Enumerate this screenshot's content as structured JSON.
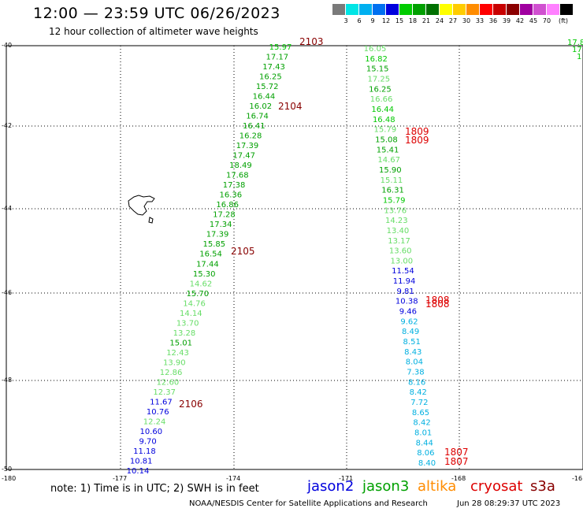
{
  "header": {
    "title": "12:00 — 23:59 UTC 06/26/2023",
    "subtitle": "12 hour collection of altimeter wave heights"
  },
  "legend": {
    "unit": "(ft)",
    "items": [
      {
        "label": "",
        "color": "#7a7a7a"
      },
      {
        "label": "3",
        "color": "#00e5e5"
      },
      {
        "label": "6",
        "color": "#00b0f0"
      },
      {
        "label": "9",
        "color": "#0070f0"
      },
      {
        "label": "12",
        "color": "#0000dd"
      },
      {
        "label": "15",
        "color": "#00cc00"
      },
      {
        "label": "18",
        "color": "#00a000"
      },
      {
        "label": "21",
        "color": "#007000"
      },
      {
        "label": "24",
        "color": "#ffff00"
      },
      {
        "label": "27",
        "color": "#ffcc00"
      },
      {
        "label": "30",
        "color": "#ff8c00"
      },
      {
        "label": "33",
        "color": "#ff0000"
      },
      {
        "label": "36",
        "color": "#c80000"
      },
      {
        "label": "39",
        "color": "#8b0000"
      },
      {
        "label": "42",
        "color": "#a000a0"
      },
      {
        "label": "45",
        "color": "#d050d0"
      },
      {
        "label": "70",
        "color": "#ff80ff"
      },
      {
        "label": "",
        "color": "#000000"
      }
    ]
  },
  "map": {
    "lat_labels": [
      "-40",
      "-42",
      "-44",
      "-46",
      "-48",
      "-50"
    ],
    "lon_labels": [
      "-180",
      "-177",
      "-174",
      "-171",
      "-168",
      "-16"
    ],
    "colors": {
      "dark_green": "#00a000",
      "green": "#00c800",
      "light_green": "#66dd66",
      "blue": "#0000dd",
      "cyan": "#00b0e0",
      "time_dark_red": "#880000",
      "time_red": "#dd0000"
    },
    "track_left": [
      {
        "v": "15.97",
        "c": "green"
      },
      {
        "v": "17.17",
        "c": "dark_green"
      },
      {
        "v": "17.43",
        "c": "dark_green"
      },
      {
        "v": "16.25",
        "c": "dark_green"
      },
      {
        "v": "15.72",
        "c": "dark_green"
      },
      {
        "v": "16.44",
        "c": "dark_green"
      },
      {
        "v": "16.02",
        "c": "dark_green"
      },
      {
        "v": "16.74",
        "c": "dark_green"
      },
      {
        "v": "16.41",
        "c": "dark_green"
      },
      {
        "v": "16.28",
        "c": "dark_green"
      },
      {
        "v": "17.39",
        "c": "dark_green"
      },
      {
        "v": "17.47",
        "c": "dark_green"
      },
      {
        "v": "18.49",
        "c": "dark_green"
      },
      {
        "v": "17.68",
        "c": "dark_green"
      },
      {
        "v": "17.38",
        "c": "dark_green"
      },
      {
        "v": "16.36",
        "c": "dark_green"
      },
      {
        "v": "16.86",
        "c": "dark_green"
      },
      {
        "v": "17.28",
        "c": "dark_green"
      },
      {
        "v": "17.34",
        "c": "dark_green"
      },
      {
        "v": "17.39",
        "c": "dark_green"
      },
      {
        "v": "15.85",
        "c": "dark_green"
      },
      {
        "v": "16.54",
        "c": "dark_green"
      },
      {
        "v": "17.44",
        "c": "dark_green"
      },
      {
        "v": "15.30",
        "c": "dark_green"
      },
      {
        "v": "14.62",
        "c": "light_green"
      },
      {
        "v": "15.70",
        "c": "dark_green"
      },
      {
        "v": "14.76",
        "c": "light_green"
      },
      {
        "v": "14.14",
        "c": "light_green"
      },
      {
        "v": "13.70",
        "c": "light_green"
      },
      {
        "v": "13.28",
        "c": "light_green"
      },
      {
        "v": "15.01",
        "c": "dark_green"
      },
      {
        "v": "12.43",
        "c": "light_green"
      },
      {
        "v": "13.90",
        "c": "light_green"
      },
      {
        "v": "12.86",
        "c": "light_green"
      },
      {
        "v": "12.60",
        "c": "light_green"
      },
      {
        "v": "12.37",
        "c": "light_green"
      },
      {
        "v": "11.67",
        "c": "blue"
      },
      {
        "v": "10.76",
        "c": "blue"
      },
      {
        "v": "12.24",
        "c": "light_green"
      },
      {
        "v": "10.60",
        "c": "blue"
      },
      {
        "v": "9.70",
        "c": "blue"
      },
      {
        "v": "11.18",
        "c": "blue"
      },
      {
        "v": "10.81",
        "c": "blue"
      },
      {
        "v": "10.14",
        "c": "blue"
      }
    ],
    "track_right": [
      {
        "v": "16.05",
        "c": "light_green"
      },
      {
        "v": "16.82",
        "c": "green"
      },
      {
        "v": "15.15",
        "c": "dark_green"
      },
      {
        "v": "17.25",
        "c": "light_green"
      },
      {
        "v": "16.25",
        "c": "dark_green"
      },
      {
        "v": "16.66",
        "c": "light_green"
      },
      {
        "v": "16.44",
        "c": "green"
      },
      {
        "v": "16.48",
        "c": "green"
      },
      {
        "v": "15.79",
        "c": "light_green"
      },
      {
        "v": "15.08",
        "c": "dark_green"
      },
      {
        "v": "15.41",
        "c": "dark_green"
      },
      {
        "v": "14.67",
        "c": "light_green"
      },
      {
        "v": "15.90",
        "c": "dark_green"
      },
      {
        "v": "15.11",
        "c": "light_green"
      },
      {
        "v": "16.31",
        "c": "dark_green"
      },
      {
        "v": "15.79",
        "c": "green"
      },
      {
        "v": "13.76",
        "c": "light_green"
      },
      {
        "v": "14.23",
        "c": "light_green"
      },
      {
        "v": "13.40",
        "c": "light_green"
      },
      {
        "v": "13.17",
        "c": "light_green"
      },
      {
        "v": "13.60",
        "c": "light_green"
      },
      {
        "v": "13.00",
        "c": "light_green"
      },
      {
        "v": "11.54",
        "c": "blue"
      },
      {
        "v": "11.94",
        "c": "blue"
      },
      {
        "v": "9.81",
        "c": "blue"
      },
      {
        "v": "10.38",
        "c": "blue"
      },
      {
        "v": "9.46",
        "c": "blue"
      },
      {
        "v": "9.62",
        "c": "cyan"
      },
      {
        "v": "8.49",
        "c": "cyan"
      },
      {
        "v": "8.51",
        "c": "cyan"
      },
      {
        "v": "8.43",
        "c": "cyan"
      },
      {
        "v": "8.04",
        "c": "cyan"
      },
      {
        "v": "7.38",
        "c": "cyan"
      },
      {
        "v": "8.16",
        "c": "cyan"
      },
      {
        "v": "8.42",
        "c": "cyan"
      },
      {
        "v": "7.72",
        "c": "cyan"
      },
      {
        "v": "8.65",
        "c": "cyan"
      },
      {
        "v": "8.42",
        "c": "cyan"
      },
      {
        "v": "8.01",
        "c": "cyan"
      },
      {
        "v": "8.44",
        "c": "cyan"
      },
      {
        "v": "8.06",
        "c": "cyan"
      },
      {
        "v": "8.40",
        "c": "cyan"
      }
    ],
    "far_right": [
      {
        "v": "17.8",
        "c": "green"
      },
      {
        "v": "17",
        "c": "green"
      },
      {
        "v": "1",
        "c": "green"
      }
    ],
    "time_labels": [
      {
        "t": "2103",
        "c": "time_dark_red"
      },
      {
        "t": "2104",
        "c": "time_dark_red"
      },
      {
        "t": "2105",
        "c": "time_dark_red"
      },
      {
        "t": "2106",
        "c": "time_dark_red"
      },
      {
        "t": "1809",
        "c": "time_red"
      },
      {
        "t": "1809",
        "c": "time_red"
      },
      {
        "t": "1808",
        "c": "time_red"
      },
      {
        "t": "1808",
        "c": "time_red"
      },
      {
        "t": "1807",
        "c": "time_red"
      },
      {
        "t": "1807",
        "c": "time_red"
      }
    ]
  },
  "footer": {
    "note": "note:  1) Time is in UTC; 2) SWH is in feet",
    "satellites": [
      {
        "name": "jason2",
        "color": "#0000dd"
      },
      {
        "name": "jason3",
        "color": "#00a000"
      },
      {
        "name": "altika",
        "color": "#ff8c00"
      },
      {
        "name": "cryosat",
        "color": "#dd0000"
      },
      {
        "name": "s3a",
        "color": "#880000"
      }
    ],
    "credit": "NOAA/NESDIS Center for Satellite Applications and Research",
    "timestamp": "Jun 28 08:29:37 UTC 2023"
  }
}
